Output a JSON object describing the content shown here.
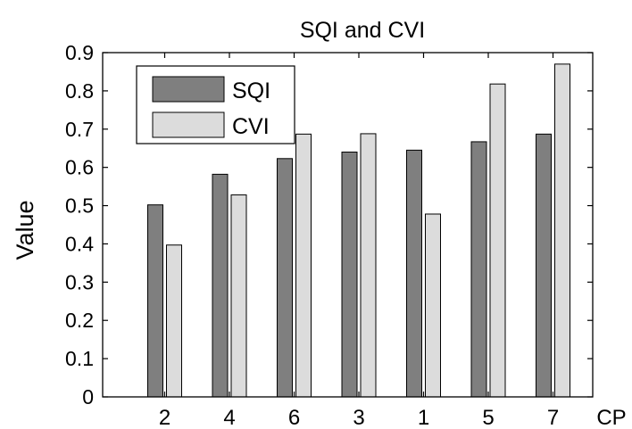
{
  "chart_data": {
    "type": "bar",
    "title": "SQI and CVI",
    "xlabel": "CP",
    "ylabel": "Value",
    "categories": [
      "2",
      "4",
      "6",
      "3",
      "1",
      "5",
      "7"
    ],
    "series": [
      {
        "name": "SQI",
        "color": "#7f7f7f",
        "values": [
          0.502,
          0.582,
          0.623,
          0.64,
          0.645,
          0.667,
          0.687
        ]
      },
      {
        "name": "CVI",
        "color": "#dcdcdc",
        "values": [
          0.397,
          0.528,
          0.687,
          0.688,
          0.478,
          0.818,
          0.87
        ]
      }
    ],
    "ylim": [
      0,
      0.9
    ],
    "yticks": [
      "0",
      "0.1",
      "0.2",
      "0.3",
      "0.4",
      "0.5",
      "0.6",
      "0.7",
      "0.8",
      "0.9"
    ],
    "legend_position": "top-left",
    "grid": false
  }
}
